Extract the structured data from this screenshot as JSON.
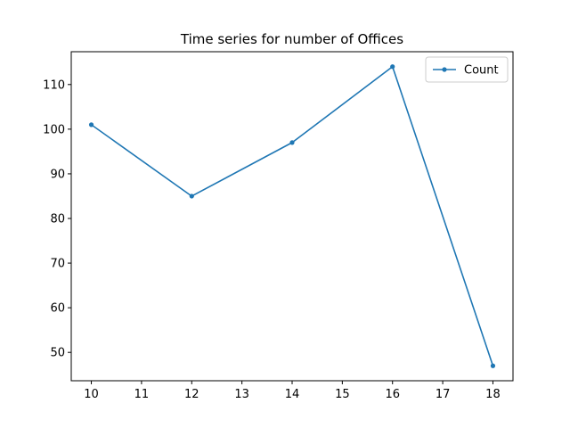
{
  "chart_data": {
    "type": "line",
    "title": "Time series for number of Offices",
    "xlabel": "",
    "ylabel": "",
    "x": [
      10,
      12,
      14,
      16,
      18
    ],
    "series": [
      {
        "name": "Count",
        "values": [
          101,
          85,
          97,
          114,
          47
        ],
        "color": "#1f77b4"
      }
    ],
    "xticks": [
      10,
      11,
      12,
      13,
      14,
      15,
      16,
      17,
      18
    ],
    "yticks": [
      50,
      60,
      70,
      80,
      90,
      100,
      110
    ],
    "xlim": [
      9.6,
      18.4
    ],
    "ylim": [
      43.65,
      117.35
    ],
    "grid": false,
    "legend_position": "upper-right",
    "marker": "circle"
  }
}
